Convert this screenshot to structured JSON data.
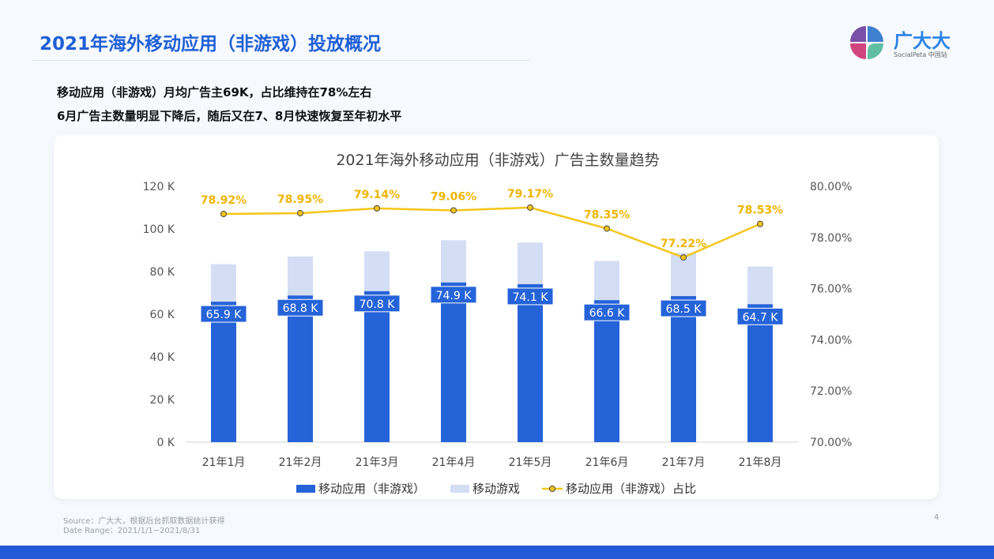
{
  "page": {
    "title": "2021年海外移动应用（非游戏）投放概况",
    "subtitle1": "移动应用（非游戏）月均广告主69K，占比维持在78%左右",
    "subtitle2": "6月广告主数量明显下降后，随后又在7、8月快速恢复至年初水平",
    "source": "Source：广大大，根据后台抓取数据统计获得",
    "date_range": "Date Range：2021/1/1~2021/8/31",
    "page_number": "4"
  },
  "logo": {
    "name": "广大大",
    "sub": "SocialPeta 中国站"
  },
  "colors": {
    "non_game": "#2563d9",
    "game": "#d3def5",
    "ratio": "#f5c518",
    "title": "#1f5fd6"
  },
  "chart_data": {
    "type": "bar",
    "title": "2021年海外移动应用（非游戏）广告主数量趋势",
    "categories": [
      "21年1月",
      "21年2月",
      "21年3月",
      "21年4月",
      "21年5月",
      "21年6月",
      "21年7月",
      "21年8月"
    ],
    "series": [
      {
        "name": "移动应用（非游戏）",
        "type": "bar",
        "values": [
          65.9,
          68.8,
          70.8,
          74.9,
          74.1,
          66.6,
          68.5,
          64.7
        ],
        "labels": [
          "65.9 K",
          "68.8 K",
          "70.8 K",
          "74.9 K",
          "74.1 K",
          "66.6 K",
          "68.5 K",
          "64.7 K"
        ]
      },
      {
        "name": "移动游戏",
        "type": "bar",
        "values": [
          17.6,
          18.3,
          18.7,
          19.8,
          19.5,
          18.4,
          20.2,
          17.7
        ]
      },
      {
        "name": "移动应用（非游戏）占比",
        "type": "line",
        "axis": "right",
        "values": [
          78.92,
          78.95,
          79.14,
          79.06,
          79.17,
          78.35,
          77.22,
          78.53
        ],
        "labels": [
          "78.92%",
          "78.95%",
          "79.14%",
          "79.06%",
          "79.17%",
          "78.35%",
          "77.22%",
          "78.53%"
        ]
      }
    ],
    "left_axis": {
      "range": [
        0,
        120
      ],
      "ticks": [
        "0 K",
        "20 K",
        "40 K",
        "60 K",
        "80 K",
        "100 K",
        "120 K"
      ]
    },
    "right_axis": {
      "range": [
        70,
        80
      ],
      "ticks": [
        "70.00%",
        "72.00%",
        "74.00%",
        "76.00%",
        "78.00%",
        "80.00%"
      ]
    },
    "grid": false,
    "legend": "bottom"
  }
}
